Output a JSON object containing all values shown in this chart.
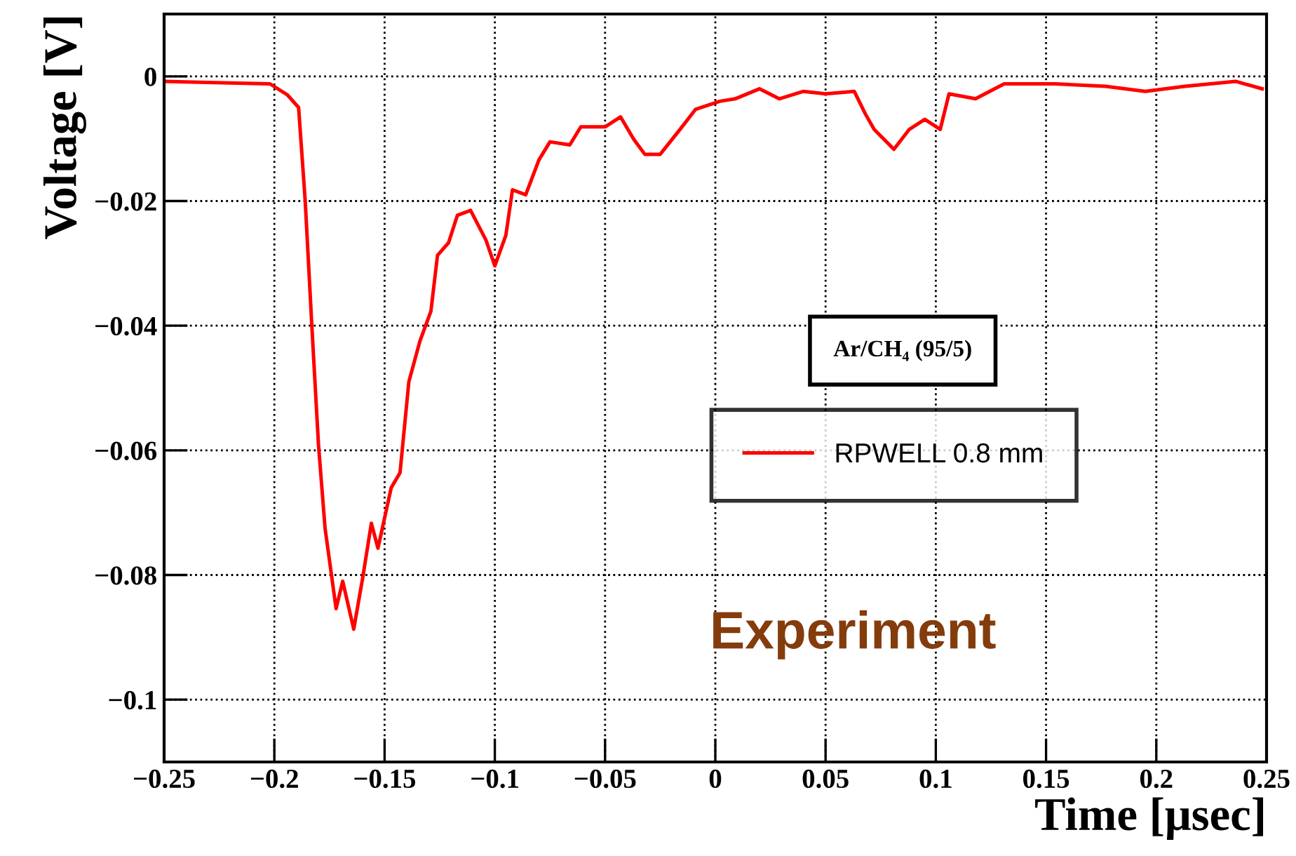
{
  "chart_data": {
    "type": "line",
    "xlabel": "Time [μsec]",
    "ylabel": "Voltage [V]",
    "x": [
      -0.25,
      -0.227,
      -0.202,
      -0.194,
      -0.189,
      -0.186,
      -0.183,
      -0.18,
      -0.177,
      -0.172,
      -0.169,
      -0.164,
      -0.16,
      -0.156,
      -0.153,
      -0.147,
      -0.143,
      -0.139,
      -0.134,
      -0.129,
      -0.126,
      -0.121,
      -0.117,
      -0.111,
      -0.104,
      -0.1,
      -0.095,
      -0.092,
      -0.086,
      -0.08,
      -0.075,
      -0.066,
      -0.061,
      -0.05,
      -0.043,
      -0.037,
      -0.032,
      -0.025,
      -0.016,
      -0.009,
      0.002,
      0.009,
      0.02,
      0.029,
      0.04,
      0.05,
      0.063,
      0.068,
      0.072,
      0.081,
      0.088,
      0.095,
      0.102,
      0.106,
      0.118,
      0.131,
      0.154,
      0.177,
      0.195,
      0.213,
      0.236,
      0.248
    ],
    "series": [
      {
        "name": "RPWELL 0.8 mm",
        "color": "#ff0000",
        "values": [
          -0.0008,
          -0.001,
          -0.0012,
          -0.003,
          -0.005,
          -0.02,
          -0.04,
          -0.059,
          -0.0725,
          -0.0854,
          -0.081,
          -0.0887,
          -0.0806,
          -0.0717,
          -0.0757,
          -0.066,
          -0.0636,
          -0.049,
          -0.0425,
          -0.0377,
          -0.0287,
          -0.0267,
          -0.0223,
          -0.0215,
          -0.0263,
          -0.0304,
          -0.0255,
          -0.0182,
          -0.019,
          -0.0134,
          -0.0105,
          -0.011,
          -0.0081,
          -0.0081,
          -0.0065,
          -0.0101,
          -0.0125,
          -0.0125,
          -0.0085,
          -0.0053,
          -0.004,
          -0.0036,
          -0.002,
          -0.0036,
          -0.0024,
          -0.0028,
          -0.0024,
          -0.006,
          -0.0085,
          -0.0117,
          -0.0085,
          -0.0069,
          -0.0085,
          -0.0028,
          -0.0036,
          -0.0012,
          -0.0012,
          -0.0016,
          -0.0024,
          -0.0016,
          -0.0008,
          -0.002
        ]
      }
    ],
    "xlim": [
      -0.25,
      0.25
    ],
    "xticks": [
      -0.25,
      -0.2,
      -0.15,
      -0.1,
      -0.05,
      0,
      0.05,
      0.1,
      0.15,
      0.2,
      0.25
    ],
    "ylim": [
      -0.11,
      0.01
    ],
    "yticks": [
      0,
      -0.02,
      -0.04,
      -0.06,
      -0.08,
      -0.1
    ],
    "grid": true,
    "legend": "right",
    "marker": "none",
    "line_style": "solid",
    "annotations": [
      "Ar/CH₄ (95/5)",
      "Experiment"
    ]
  }
}
